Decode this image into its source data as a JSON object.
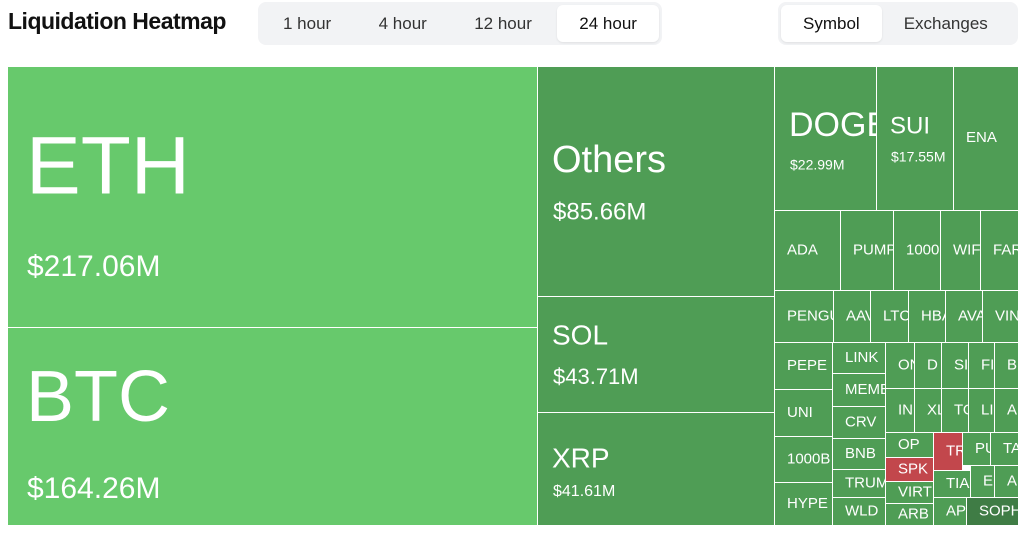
{
  "header": {
    "title": "Liquidation Heatmap",
    "time_tabs": [
      {
        "label": "1 hour",
        "active": false
      },
      {
        "label": "4 hour",
        "active": false
      },
      {
        "label": "12 hour",
        "active": false
      },
      {
        "label": "24 hour",
        "active": true
      }
    ],
    "view_tabs": [
      {
        "label": "Symbol",
        "active": true
      },
      {
        "label": "Exchanges",
        "active": false
      }
    ]
  },
  "heatmap": {
    "tiles": [
      {
        "symbol": "ETH",
        "value": "$217.06M",
        "color": "#67c96c"
      },
      {
        "symbol": "BTC",
        "value": "$164.26M",
        "color": "#67c96c"
      },
      {
        "symbol": "Others",
        "value": "$85.66M",
        "color": "#4f9d55"
      },
      {
        "symbol": "SOL",
        "value": "$43.71M",
        "color": "#4f9d55"
      },
      {
        "symbol": "XRP",
        "value": "$41.61M",
        "color": "#4f9d55"
      },
      {
        "symbol": "DOGE",
        "value": "$22.99M",
        "color": "#4f9d55"
      },
      {
        "symbol": "SUI",
        "value": "$17.55M",
        "color": "#4f9d55"
      },
      {
        "symbol": "ENA",
        "color": "#4f9d55"
      },
      {
        "symbol": "ADA",
        "color": "#4f9d55"
      },
      {
        "symbol": "PUMP",
        "color": "#4f9d55"
      },
      {
        "symbol": "1000",
        "color": "#4f9d55"
      },
      {
        "symbol": "WIF",
        "color": "#4f9d55"
      },
      {
        "symbol": "FAR",
        "color": "#4f9d55"
      },
      {
        "symbol": "PENGU",
        "color": "#4f9d55"
      },
      {
        "symbol": "AAV",
        "color": "#4f9d55"
      },
      {
        "symbol": "LTC",
        "color": "#4f9d55"
      },
      {
        "symbol": "HBA",
        "color": "#4f9d55"
      },
      {
        "symbol": "AVA",
        "color": "#4f9d55"
      },
      {
        "symbol": "VIN",
        "color": "#4f9d55"
      },
      {
        "symbol": "PEPE",
        "color": "#4f9d55"
      },
      {
        "symbol": "UNI",
        "color": "#4f9d55"
      },
      {
        "symbol": "1000B",
        "color": "#4f9d55"
      },
      {
        "symbol": "HYPE",
        "color": "#4f9d55"
      },
      {
        "symbol": "LINK",
        "color": "#4f9d55"
      },
      {
        "symbol": "MEME",
        "color": "#4f9d55"
      },
      {
        "symbol": "CRV",
        "color": "#4f9d55"
      },
      {
        "symbol": "BNB",
        "color": "#4f9d55"
      },
      {
        "symbol": "TRUMP",
        "color": "#4f9d55"
      },
      {
        "symbol": "WLD",
        "color": "#4f9d55"
      },
      {
        "symbol": "ON",
        "color": "#4f9d55"
      },
      {
        "symbol": "D",
        "color": "#4f9d55"
      },
      {
        "symbol": "SI",
        "color": "#4f9d55"
      },
      {
        "symbol": "FI",
        "color": "#4f9d55"
      },
      {
        "symbol": "B",
        "color": "#4f9d55"
      },
      {
        "symbol": "IN",
        "color": "#4f9d55"
      },
      {
        "symbol": "XL",
        "color": "#4f9d55"
      },
      {
        "symbol": "TO",
        "color": "#4f9d55"
      },
      {
        "symbol": "LI",
        "color": "#4f9d55"
      },
      {
        "symbol": "A",
        "color": "#4f9d55"
      },
      {
        "symbol": "OP",
        "color": "#4f9d55"
      },
      {
        "symbol": "SPK",
        "color": "#c2474c"
      },
      {
        "symbol": "VIRT",
        "color": "#4f9d55"
      },
      {
        "symbol": "ARB",
        "color": "#4f9d55"
      },
      {
        "symbol": "TR",
        "color": "#c2474c"
      },
      {
        "symbol": "PU",
        "color": "#4f9d55"
      },
      {
        "symbol": "TA",
        "color": "#4f9d55"
      },
      {
        "symbol": "TIA",
        "color": "#4f9d55"
      },
      {
        "symbol": "E",
        "color": "#4f9d55"
      },
      {
        "symbol": "A",
        "color": "#4f9d55"
      },
      {
        "symbol": "APT",
        "color": "#4f9d55"
      },
      {
        "symbol": "SOPH",
        "color": "#3f7c45"
      }
    ]
  }
}
